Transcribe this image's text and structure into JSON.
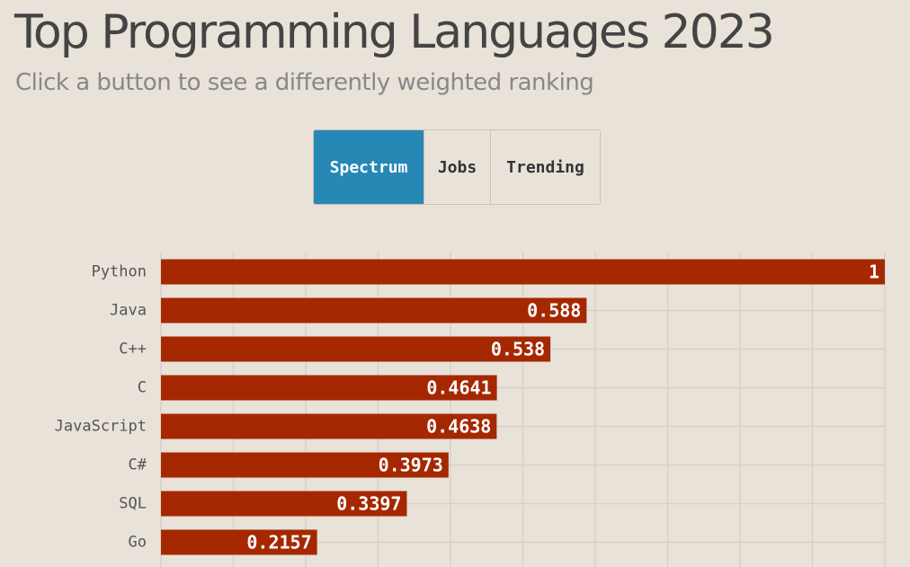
{
  "header": {
    "title": "Top Programming Languages 2023",
    "subtitle": "Click a button to see a differently weighted ranking"
  },
  "buttons": [
    {
      "label": "Spectrum",
      "active": true
    },
    {
      "label": "Jobs",
      "active": false
    },
    {
      "label": "Trending",
      "active": false
    }
  ],
  "colors": {
    "bar": "#a52800",
    "active_button": "#2788b5",
    "background": "#e8e2d9"
  },
  "chart_data": {
    "type": "bar",
    "orientation": "horizontal",
    "title": "Top Programming Languages 2023",
    "categories": [
      "Python",
      "Java",
      "C++",
      "C",
      "JavaScript",
      "C#",
      "SQL",
      "Go"
    ],
    "values": [
      1,
      0.588,
      0.538,
      0.4641,
      0.4638,
      0.3973,
      0.3397,
      0.2157
    ],
    "value_labels": [
      "1",
      "0.588",
      "0.538",
      "0.4641",
      "0.4638",
      "0.3973",
      "0.3397",
      "0.2157"
    ],
    "xlim": [
      0,
      1
    ],
    "grid": true
  }
}
